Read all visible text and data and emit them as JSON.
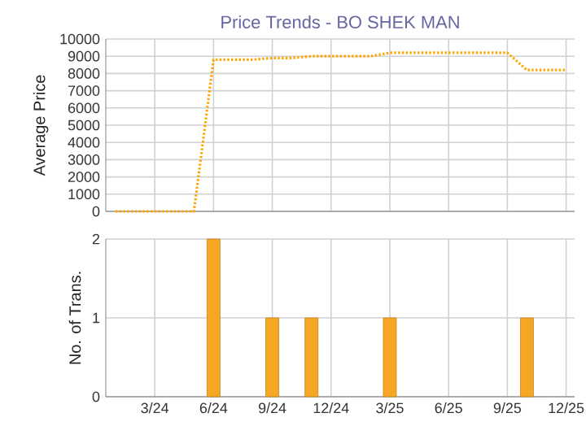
{
  "chart_data": [
    {
      "type": "line",
      "title": "Price Trends - BO SHEK MAN",
      "ylabel": "Average Price",
      "x": [
        "2024-01",
        "2024-02",
        "2024-03",
        "2024-04",
        "2024-05",
        "2024-06",
        "2024-07",
        "2024-08",
        "2024-09",
        "2024-10",
        "2024-11",
        "2024-12",
        "2025-01",
        "2025-02",
        "2025-03",
        "2025-04",
        "2025-05",
        "2025-06",
        "2025-07",
        "2025-08",
        "2025-09",
        "2025-10",
        "2025-11",
        "2025-12"
      ],
      "series": [
        {
          "color": "#ffa500",
          "values": [
            0,
            0,
            0,
            0,
            0,
            8800,
            8800,
            8800,
            8900,
            8900,
            9000,
            9000,
            9000,
            9000,
            9200,
            9200,
            9200,
            9200,
            9200,
            9200,
            9200,
            8200,
            8200,
            8200
          ]
        }
      ],
      "xlim": [
        "2023-12-16",
        "2025-12-14"
      ],
      "xticks": [
        {
          "value": "2024-03",
          "label": null
        },
        {
          "value": "2024-06",
          "label": null
        },
        {
          "value": "2024-09",
          "label": null
        },
        {
          "value": "2024-12",
          "label": null
        },
        {
          "value": "2025-03",
          "label": null
        },
        {
          "value": "2025-06",
          "label": null
        },
        {
          "value": "2025-09",
          "label": null
        },
        {
          "value": "2025-12",
          "label": null
        }
      ],
      "ylim": [
        0,
        10000
      ],
      "yticks": [
        0,
        1000,
        2000,
        3000,
        4000,
        5000,
        6000,
        7000,
        8000,
        9000,
        10000
      ],
      "grid": true,
      "tick_labels": "y",
      "line_style": "dotted",
      "marker": "none"
    },
    {
      "type": "bar",
      "ylabel": "No. of Trans.",
      "x": [
        "2024-06",
        "2024-09",
        "2024-11",
        "2025-03",
        "2025-10"
      ],
      "values": [
        2,
        1,
        1,
        1,
        1
      ],
      "color": "#f5a623",
      "xlim": [
        "2023-12-16",
        "2025-12-14"
      ],
      "xticks": [
        {
          "value": "2024-03",
          "label": "3/24"
        },
        {
          "value": "2024-06",
          "label": "6/24"
        },
        {
          "value": "2024-09",
          "label": "9/24"
        },
        {
          "value": "2024-12",
          "label": "12/24"
        },
        {
          "value": "2025-03",
          "label": "3/25"
        },
        {
          "value": "2025-06",
          "label": "6/25"
        },
        {
          "value": "2025-09",
          "label": "9/25"
        },
        {
          "value": "2025-12",
          "label": "12/25"
        }
      ],
      "ylim": [
        0,
        2
      ],
      "yticks": [
        0,
        1,
        2
      ],
      "grid": true
    }
  ]
}
